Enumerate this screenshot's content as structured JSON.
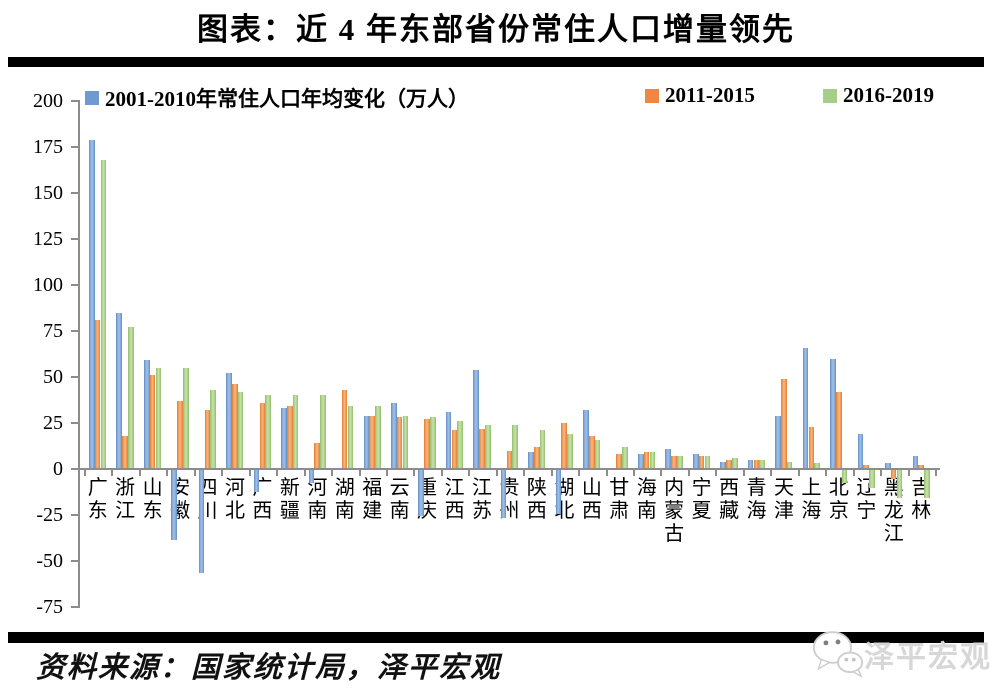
{
  "title": "图表：近 4 年东部省份常住人口增量领先",
  "source": "资料来源：国家统计局，泽平宏观",
  "logo": {
    "text": "泽平宏观",
    "icon": "wechat-bubbles-icon"
  },
  "colors": {
    "series_blue": "#6f9ad1",
    "series_orange": "#ee8742",
    "series_green": "#a5cf87",
    "axis_gray": "#8c8c8c",
    "rule_black": "#000000",
    "logo_gray": "#d7d7d7"
  },
  "chart_data": {
    "type": "bar",
    "title": "图表：近 4 年东部省份常住人口增量领先",
    "xlabel": "",
    "ylabel": "",
    "ylim": [
      -75,
      200
    ],
    "yticks": [
      200,
      175,
      150,
      125,
      100,
      75,
      50,
      25,
      0,
      -25,
      -50,
      -75
    ],
    "grid": false,
    "legend_position": "top",
    "categories": [
      "广东",
      "浙江",
      "山东",
      "安徽",
      "四川",
      "河北",
      "广西",
      "新疆",
      "河南",
      "湖南",
      "福建",
      "云南",
      "重庆",
      "江西",
      "江苏",
      "贵州",
      "陕西",
      "湖北",
      "山西",
      "甘肃",
      "海南",
      "内蒙古",
      "宁夏",
      "西藏",
      "青海",
      "天津",
      "上海",
      "北京",
      "辽宁",
      "黑龙江",
      "吉林"
    ],
    "series": [
      {
        "name": "2001-2010年常住人口年均变化（万人）",
        "color_key": "series_blue",
        "values": [
          179,
          85,
          59,
          -38,
          -56,
          52,
          -12,
          33,
          -7,
          0,
          29,
          36,
          -25,
          31,
          54,
          -26,
          9,
          -24,
          32,
          0,
          8,
          11,
          8,
          4,
          5,
          29,
          66,
          60,
          19,
          3,
          7
        ]
      },
      {
        "name": "2011-2015",
        "color_key": "series_orange",
        "values": [
          81,
          18,
          51,
          37,
          32,
          46,
          36,
          34,
          14,
          43,
          29,
          28,
          27,
          21,
          22,
          10,
          12,
          25,
          18,
          8,
          9,
          7,
          7,
          5,
          5,
          49,
          23,
          42,
          2,
          -5,
          2
        ]
      },
      {
        "name": "2016-2019",
        "color_key": "series_green",
        "values": [
          168,
          77,
          55,
          55,
          43,
          42,
          40,
          40,
          40,
          34,
          34,
          29,
          28,
          26,
          24,
          24,
          21,
          19,
          16,
          12,
          9,
          7,
          7,
          6,
          5,
          4,
          3,
          -7,
          -10,
          -15,
          -15
        ]
      }
    ]
  }
}
